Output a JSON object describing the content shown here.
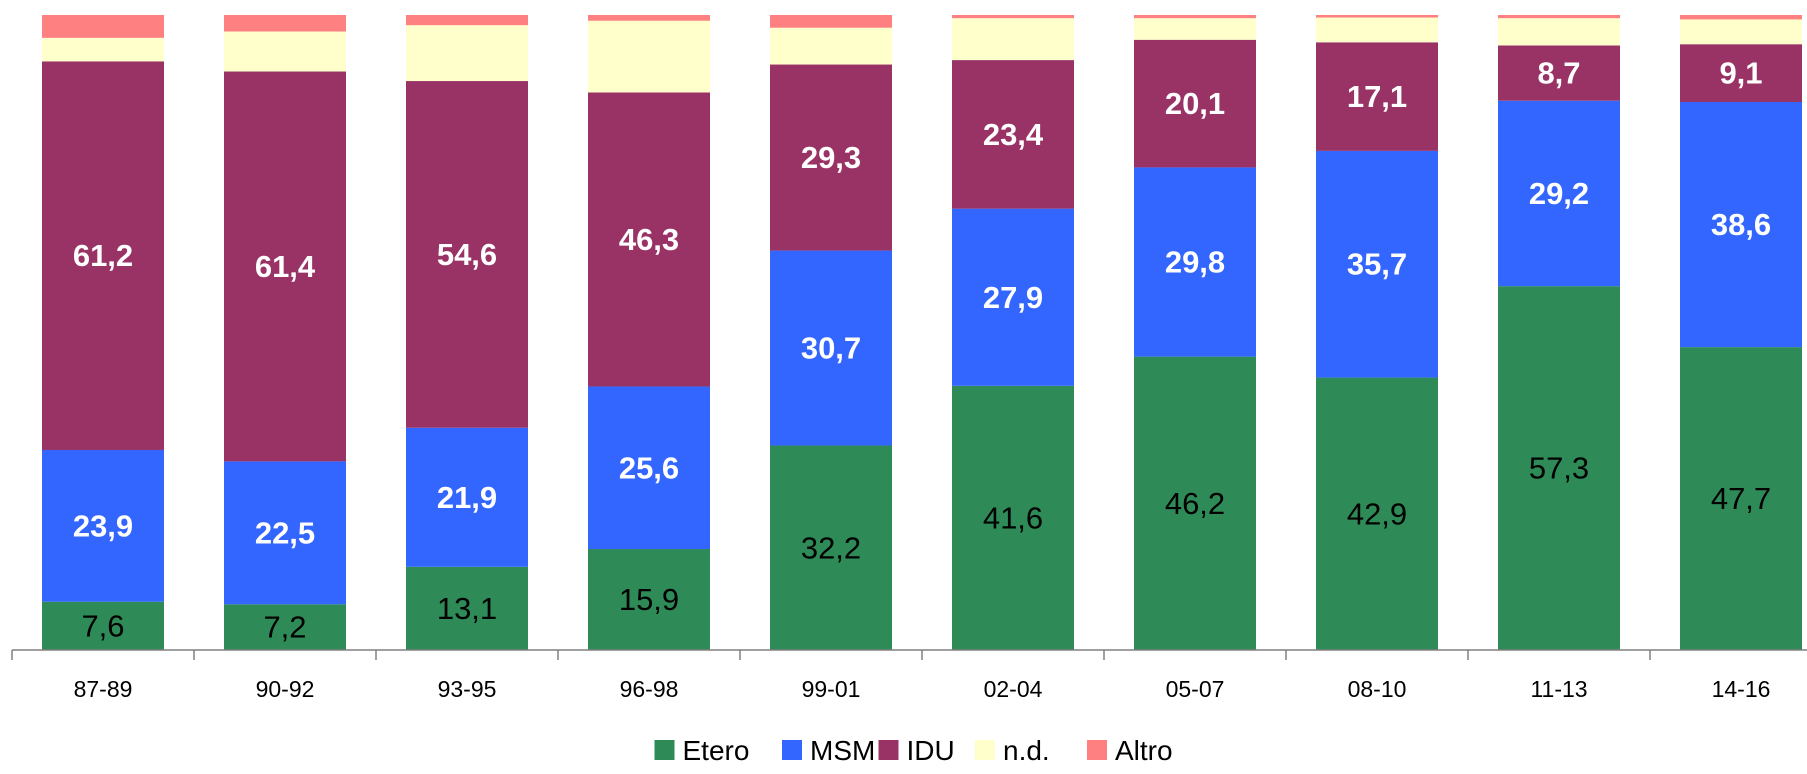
{
  "chart_data": {
    "type": "bar",
    "stacked": true,
    "normalized_percent": true,
    "categories": [
      "87-89",
      "90-92",
      "93-95",
      "96-98",
      "99-01",
      "02-04",
      "05-07",
      "08-10",
      "11-13",
      "14-16"
    ],
    "series": [
      {
        "name": "Etero",
        "color": "#2e8b57",
        "label_style": "plain",
        "values": [
          7.6,
          7.2,
          13.1,
          15.9,
          32.2,
          41.6,
          46.2,
          42.9,
          57.3,
          47.7
        ],
        "labels": [
          "7,6",
          "7,2",
          "13,1",
          "15,9",
          "32,2",
          "41,6",
          "46,2",
          "42,9",
          "57,3",
          "47,7"
        ]
      },
      {
        "name": "MSM",
        "color": "#3366ff",
        "label_style": "bold",
        "values": [
          23.9,
          22.5,
          21.9,
          25.6,
          30.7,
          27.9,
          29.8,
          35.7,
          29.2,
          38.6
        ],
        "labels": [
          "23,9",
          "22,5",
          "21,9",
          "25,6",
          "30,7",
          "27,9",
          "29,8",
          "35,7",
          "29,2",
          "38,6"
        ]
      },
      {
        "name": "IDU",
        "color": "#993366",
        "label_style": "bold",
        "values": [
          61.2,
          61.4,
          54.6,
          46.3,
          29.3,
          23.4,
          20.1,
          17.1,
          8.7,
          9.1
        ],
        "labels": [
          "61,2",
          "61,4",
          "54,6",
          "46,3",
          "29,3",
          "23,4",
          "20,1",
          "17,1",
          "8,7",
          "9,1"
        ]
      },
      {
        "name": "n.d.",
        "color": "#ffffcc",
        "label_style": "none",
        "values": [
          3.7,
          6.3,
          8.8,
          11.3,
          5.8,
          6.6,
          3.4,
          3.9,
          4.3,
          3.9
        ],
        "labels": []
      },
      {
        "name": "Altro",
        "color": "#ff8080",
        "label_style": "none",
        "values": [
          3.6,
          2.6,
          1.6,
          0.9,
          2.0,
          0.5,
          0.5,
          0.4,
          0.5,
          0.7
        ],
        "labels": []
      }
    ],
    "ylim": [
      0,
      100
    ],
    "grid": false,
    "legend_position": "bottom"
  }
}
